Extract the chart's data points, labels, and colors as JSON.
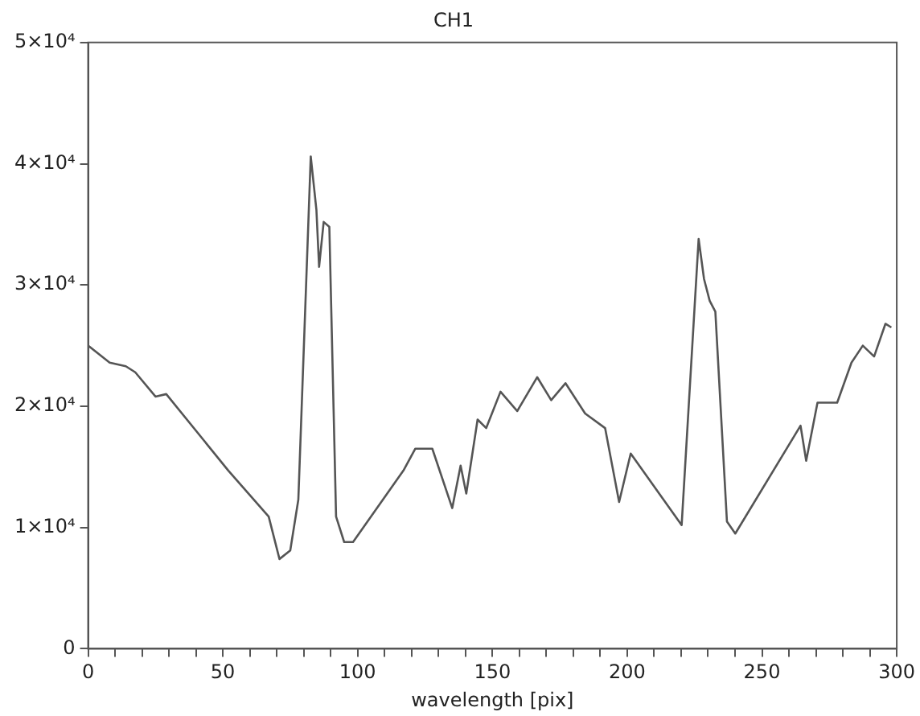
{
  "chart_data": {
    "type": "line",
    "title": "CH1",
    "xlabel": "wavelength [pix]",
    "x": [
      0,
      8,
      14,
      17.5,
      25,
      29,
      52,
      67,
      71,
      75,
      78,
      82.6,
      84.7,
      85.7,
      87.4,
      89.5,
      92,
      95,
      98.3,
      117,
      121.4,
      127.7,
      135.1,
      138.2,
      140.3,
      144.5,
      147.7,
      153,
      159.2,
      166.6,
      171.8,
      177.1,
      184.4,
      191.8,
      197,
      201.3,
      220.2,
      226.5,
      228.5,
      230.6,
      232.7,
      237,
      240.1,
      264.3,
      266.4,
      270.6,
      277.9,
      283.2,
      287.4,
      291.6,
      295.8,
      298
    ],
    "series": [
      {
        "color": "#555555",
        "values": [
          25000,
          23600,
          23300,
          22800,
          20800,
          21000,
          14700,
          10900,
          7400,
          8100,
          12300,
          40600,
          36200,
          31500,
          35200,
          34800,
          10900,
          8800,
          8800,
          14700,
          16500,
          16500,
          11600,
          15100,
          12800,
          18900,
          18200,
          21200,
          19600,
          22400,
          20500,
          21900,
          19400,
          18200,
          12100,
          16100,
          10200,
          33800,
          30500,
          28700,
          27800,
          10500,
          9500,
          18400,
          15500,
          20300,
          20300,
          23600,
          25000,
          24100,
          26800,
          26500
        ]
      }
    ],
    "xlim": [
      0,
      300
    ],
    "xticks": [
      0,
      {
        "value": 10,
        "label": null
      },
      {
        "value": 20,
        "label": null
      },
      {
        "value": 30,
        "label": null
      },
      {
        "value": 40,
        "label": null
      },
      50,
      {
        "value": 60,
        "label": null
      },
      {
        "value": 70,
        "label": null
      },
      {
        "value": 80,
        "label": null
      },
      {
        "value": 90,
        "label": null
      },
      100,
      {
        "value": 110,
        "label": null
      },
      {
        "value": 120,
        "label": null
      },
      {
        "value": 130,
        "label": null
      },
      {
        "value": 140,
        "label": null
      },
      150,
      {
        "value": 160,
        "label": null
      },
      {
        "value": 170,
        "label": null
      },
      {
        "value": 180,
        "label": null
      },
      {
        "value": 190,
        "label": null
      },
      200,
      {
        "value": 210,
        "label": null
      },
      {
        "value": 220,
        "label": null
      },
      {
        "value": 230,
        "label": null
      },
      {
        "value": 240,
        "label": null
      },
      250,
      {
        "value": 260,
        "label": null
      },
      {
        "value": 270,
        "label": null
      },
      {
        "value": 280,
        "label": null
      },
      {
        "value": 290,
        "label": null
      },
      300
    ],
    "ylim": [
      0,
      50000
    ],
    "yticks": [
      0,
      {
        "value": 10000,
        "label": "1×10⁴"
      },
      {
        "value": 20000,
        "label": "2×10⁴"
      },
      {
        "value": 30000,
        "label": "3×10⁴"
      },
      {
        "value": 40000,
        "label": "4×10⁴"
      },
      {
        "value": 50000,
        "label": "5×10⁴"
      }
    ],
    "grid": false,
    "marker": "none",
    "line_style": "solid"
  }
}
